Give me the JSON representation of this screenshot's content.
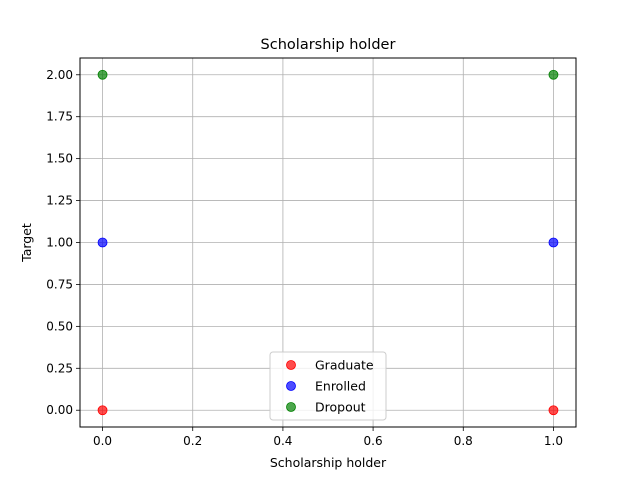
{
  "chart_data": {
    "type": "scatter",
    "title": "Scholarship holder",
    "xlabel": "Scholarship holder",
    "ylabel": "Target",
    "xlim": [
      -0.05,
      1.05
    ],
    "ylim": [
      -0.1,
      2.1
    ],
    "xticks": [
      "0.0",
      "0.2",
      "0.4",
      "0.6",
      "0.8",
      "1.0"
    ],
    "yticks": [
      "0.00",
      "0.25",
      "0.50",
      "0.75",
      "1.00",
      "1.25",
      "1.50",
      "1.75",
      "2.00"
    ],
    "grid": true,
    "legend_position": "bottom-center",
    "series": [
      {
        "name": "Graduate",
        "color": "#ff0000",
        "x": [
          0,
          1
        ],
        "y": [
          0,
          0
        ]
      },
      {
        "name": "Enrolled",
        "color": "#0000ff",
        "x": [
          0,
          1
        ],
        "y": [
          1,
          1
        ]
      },
      {
        "name": "Dropout",
        "color": "#008000",
        "x": [
          0,
          1
        ],
        "y": [
          2,
          2
        ]
      }
    ]
  }
}
